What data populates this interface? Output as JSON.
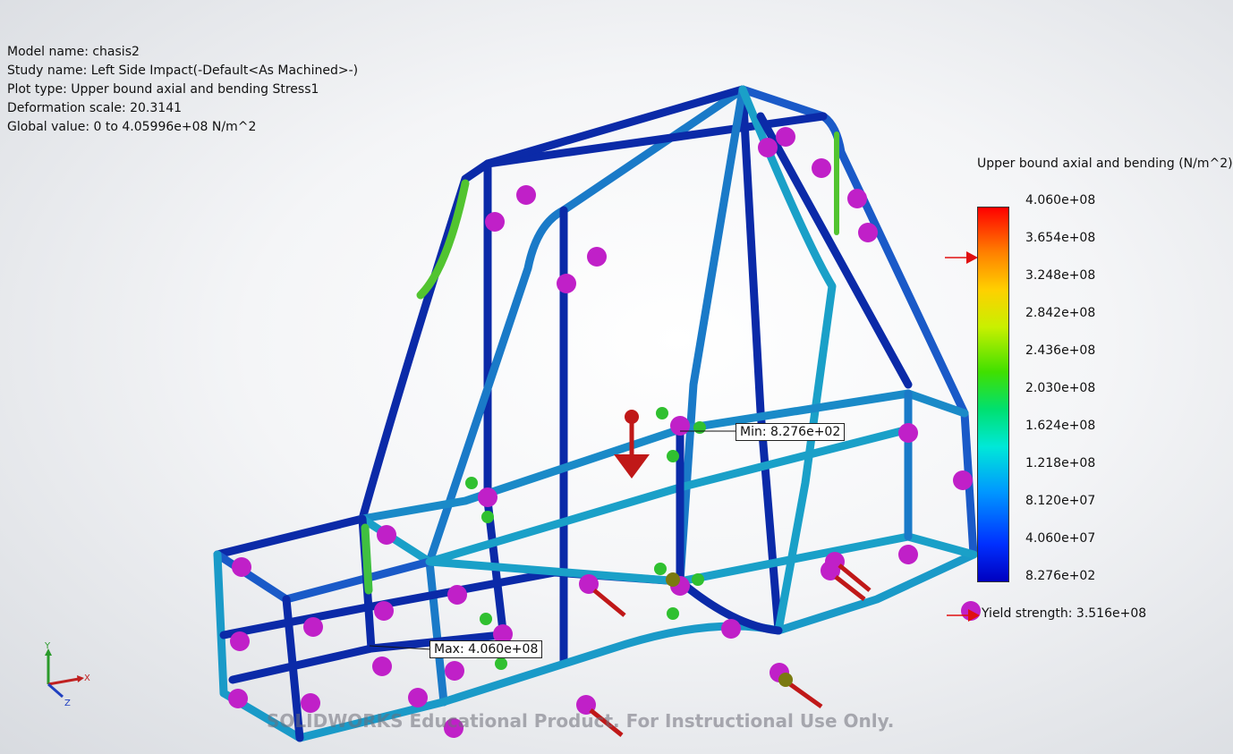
{
  "info": {
    "model_name": "Model name: chasis2",
    "study_name": "Study name: Left Side Impact(-Default<As Machined>-)",
    "plot_type": "Plot type: Upper bound axial and bending Stress1",
    "deformation_scale": "Deformation scale: 20.3141",
    "global_value": "Global value: 0 to 4.05996e+08 N/m^2"
  },
  "legend": {
    "title": "Upper bound axial and bending (N/m^2)",
    "ticks": [
      "4.060e+08",
      "3.654e+08",
      "3.248e+08",
      "2.842e+08",
      "2.436e+08",
      "2.030e+08",
      "1.624e+08",
      "1.218e+08",
      "8.120e+07",
      "4.060e+07",
      "8.276e+02"
    ],
    "yield_strength": "Yield strength: 3.516e+08",
    "yield_fraction": 0.866
  },
  "annotations": {
    "min_label": "Min: 8.276e+02",
    "max_label": "Max: 4.060e+08"
  },
  "triad": {
    "y": "Y",
    "x": "X",
    "z": "Z"
  },
  "watermark": "SOLIDWORKS Educational Product. For Instructional Use Only.",
  "colors": {
    "beam_low": "#0a2aa8",
    "beam_mid": "#1fa0c8",
    "beam_high": "#3cc83c",
    "fixture": "#c020c8",
    "load": "#c01818",
    "background": "#f4f5f7"
  }
}
